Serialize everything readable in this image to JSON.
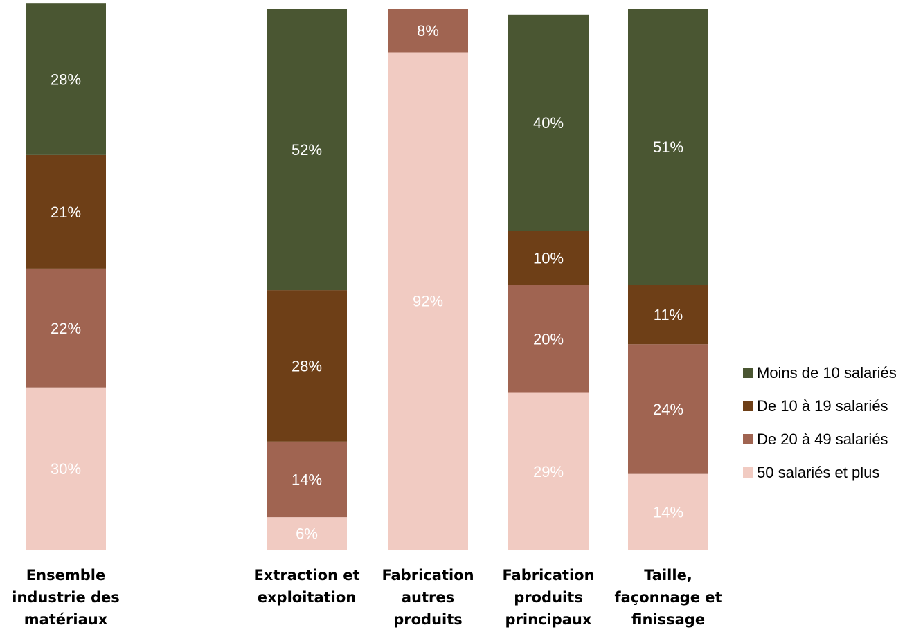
{
  "chart_data": {
    "type": "bar",
    "stacked": true,
    "percent": true,
    "title": "",
    "xlabel": "",
    "ylabel": "",
    "ylim": [
      0,
      100
    ],
    "grid": false,
    "legend_position": "right",
    "categories": [
      [
        "Ensemble",
        "industrie des",
        "matériaux"
      ],
      [
        "Extraction et",
        "exploitation"
      ],
      [
        "Fabrication",
        "autres",
        "produits"
      ],
      [
        "Fabrication",
        "produits",
        "principaux"
      ],
      [
        "Taille,",
        "façonnage et",
        "finissage"
      ]
    ],
    "series": [
      {
        "name": "50 salariés et plus",
        "color": "#f1cbc2",
        "values": [
          30,
          6,
          92,
          29,
          14
        ],
        "labels": [
          "30%",
          "6%",
          "92%",
          "29%",
          "14%"
        ]
      },
      {
        "name": "De 20 à 49 salariés",
        "color": "#a06451",
        "values": [
          22,
          14,
          8,
          20,
          24
        ],
        "labels": [
          "22%",
          "14%",
          "8%",
          "20%",
          "24%"
        ]
      },
      {
        "name": "De 10 à 19 salariés",
        "color": "#6e3f17",
        "values": [
          21,
          28,
          0,
          10,
          11
        ],
        "labels": [
          "21%",
          "28%",
          "",
          "10%",
          "11%"
        ]
      },
      {
        "name": "Moins de 10 salariés",
        "color": "#4a5632",
        "values": [
          28,
          52,
          0,
          40,
          51
        ],
        "labels": [
          "28%",
          "52%",
          "",
          "40%",
          "51%"
        ]
      }
    ],
    "legend_order": [
      "Moins de 10 salariés",
      "De 10 à 19 salariés",
      "De 20 à 49 salariés",
      "50 salariés et plus"
    ]
  }
}
